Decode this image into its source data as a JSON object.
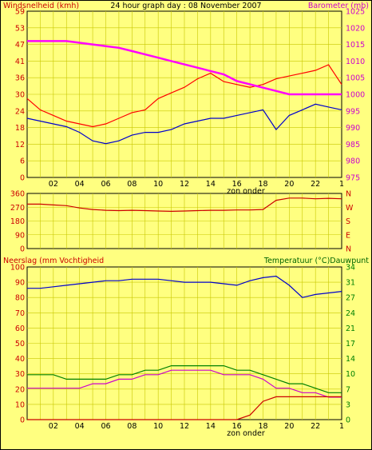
{
  "chart_data": [
    {
      "type": "line",
      "title": "24 hour graph day : 08 November 2007",
      "x_tick_labels": [
        "02",
        "04",
        "06",
        "08",
        "10",
        "12",
        "14",
        "16",
        "18",
        "20",
        "22",
        "1"
      ],
      "sun_label": "zon onder",
      "grid": true,
      "left_axis": {
        "label": "Windsnelheid (kmh)",
        "ticks": [
          "59",
          "53",
          "47",
          "41",
          "36",
          "30",
          "24",
          "18",
          "12",
          "6",
          "0"
        ],
        "ylim": [
          0,
          59
        ]
      },
      "right_axis": {
        "label": "Barometer (mb)",
        "ticks": [
          "1025",
          "1020",
          "1015",
          "1010",
          "1005",
          "1000",
          "995",
          "990",
          "985",
          "980",
          "975"
        ],
        "ylim": [
          975,
          1025
        ]
      },
      "series": [
        {
          "axis": "left",
          "color": "#ff0000",
          "x": [
            0,
            1,
            2,
            3,
            4,
            5,
            6,
            7,
            8,
            9,
            10,
            11,
            12,
            13,
            14,
            15,
            16,
            17,
            18,
            19,
            20,
            21,
            22,
            23,
            24
          ],
          "values": [
            28,
            24,
            22,
            20,
            19,
            18,
            19,
            21,
            23,
            24,
            28,
            30,
            32,
            35,
            37,
            34,
            33,
            32,
            33,
            35,
            36,
            37,
            38,
            40,
            33
          ]
        },
        {
          "axis": "left",
          "color": "#0000cc",
          "x": [
            0,
            1,
            2,
            3,
            4,
            5,
            6,
            7,
            8,
            9,
            10,
            11,
            12,
            13,
            14,
            15,
            16,
            17,
            18,
            19,
            20,
            21,
            22,
            23,
            24
          ],
          "values": [
            21,
            20,
            19,
            18,
            16,
            13,
            12,
            13,
            15,
            16,
            16,
            17,
            19,
            20,
            21,
            21,
            22,
            23,
            24,
            17,
            22,
            24,
            26,
            25,
            24
          ]
        },
        {
          "axis": "right",
          "color": "#ff00ff",
          "x": [
            0,
            1,
            2,
            3,
            4,
            5,
            6,
            7,
            8,
            9,
            10,
            11,
            12,
            13,
            14,
            15,
            16,
            17,
            18,
            19,
            20,
            21,
            22,
            23,
            24
          ],
          "values": [
            1016,
            1016,
            1016,
            1016,
            1015.5,
            1015,
            1014.5,
            1014,
            1013,
            1012,
            1011,
            1010,
            1009,
            1008,
            1007,
            1006,
            1004,
            1003,
            1002,
            1001,
            1000,
            1000,
            1000,
            1000,
            1000
          ]
        }
      ]
    },
    {
      "type": "line",
      "x_tick_labels": [],
      "grid": true,
      "left_axis": {
        "ticks": [
          "360",
          "270",
          "180",
          "90",
          "0"
        ],
        "ylim": [
          0,
          360
        ]
      },
      "right_axis": {
        "ticks": [
          "N",
          "W",
          "S",
          "E",
          "N"
        ]
      },
      "series": [
        {
          "axis": "left",
          "color": "#cc0000",
          "x": [
            0,
            1,
            2,
            3,
            4,
            5,
            6,
            7,
            8,
            9,
            10,
            11,
            12,
            13,
            14,
            15,
            16,
            17,
            18,
            19,
            20,
            21,
            22,
            23,
            24
          ],
          "values": [
            290,
            290,
            285,
            280,
            265,
            255,
            250,
            248,
            250,
            248,
            245,
            243,
            245,
            248,
            250,
            250,
            252,
            252,
            255,
            315,
            330,
            330,
            325,
            328,
            325
          ]
        }
      ]
    },
    {
      "type": "line",
      "x_tick_labels": [
        "02",
        "04",
        "06",
        "08",
        "10",
        "12",
        "14",
        "16",
        "18",
        "20",
        "22",
        "1"
      ],
      "sun_label": "zon onder",
      "grid": true,
      "left_axis": {
        "label": "Neerslag (mm Vochtigheid",
        "ticks": [
          "100",
          "90",
          "80",
          "70",
          "60",
          "50",
          "40",
          "30",
          "20",
          "10",
          "0"
        ],
        "ylim": [
          0,
          100
        ]
      },
      "right_axis": {
        "label": "Temperatuur (°C)Dauwpunt",
        "ticks": [
          "34",
          "31",
          "27",
          "24",
          "21",
          "17",
          "14",
          "10",
          "7",
          "3",
          "0"
        ],
        "ylim": [
          0,
          34
        ]
      },
      "series": [
        {
          "axis": "left",
          "color": "#0000cc",
          "x": [
            0,
            1,
            2,
            3,
            4,
            5,
            6,
            7,
            8,
            9,
            10,
            11,
            12,
            13,
            14,
            15,
            16,
            17,
            18,
            19,
            20,
            21,
            22,
            23,
            24
          ],
          "values": [
            86,
            86,
            87,
            88,
            89,
            90,
            91,
            91,
            92,
            92,
            92,
            91,
            90,
            90,
            90,
            89,
            88,
            91,
            93,
            94,
            88,
            80,
            82,
            83,
            84
          ]
        },
        {
          "axis": "right",
          "color": "#008000",
          "x": [
            0,
            1,
            2,
            3,
            4,
            5,
            6,
            7,
            8,
            9,
            10,
            11,
            12,
            13,
            14,
            15,
            16,
            17,
            18,
            19,
            20,
            21,
            22,
            23,
            24
          ],
          "values": [
            10,
            10,
            10,
            9,
            9,
            9,
            9,
            10,
            10,
            11,
            11,
            12,
            12,
            12,
            12,
            12,
            11,
            11,
            10,
            9,
            8,
            8,
            7,
            6,
            6
          ]
        },
        {
          "axis": "right",
          "color": "#cc00cc",
          "x": [
            0,
            1,
            2,
            3,
            4,
            5,
            6,
            7,
            8,
            9,
            10,
            11,
            12,
            13,
            14,
            15,
            16,
            17,
            18,
            19,
            20,
            21,
            22,
            23,
            24
          ],
          "values": [
            7,
            7,
            7,
            7,
            7,
            8,
            8,
            9,
            9,
            10,
            10,
            11,
            11,
            11,
            11,
            10,
            10,
            10,
            9,
            7,
            7,
            6,
            6,
            5,
            5
          ]
        },
        {
          "axis": "left",
          "color": "#cc0000",
          "x": [
            0,
            1,
            2,
            3,
            4,
            5,
            6,
            7,
            8,
            9,
            10,
            11,
            12,
            13,
            14,
            15,
            16,
            17,
            18,
            19,
            20,
            21,
            22,
            23,
            24
          ],
          "values": [
            0,
            0,
            0,
            0,
            0,
            0,
            0,
            0,
            0,
            0,
            0,
            0,
            0,
            0,
            0,
            0,
            0,
            3,
            12,
            15,
            15,
            15,
            15,
            15,
            15
          ]
        }
      ]
    }
  ]
}
